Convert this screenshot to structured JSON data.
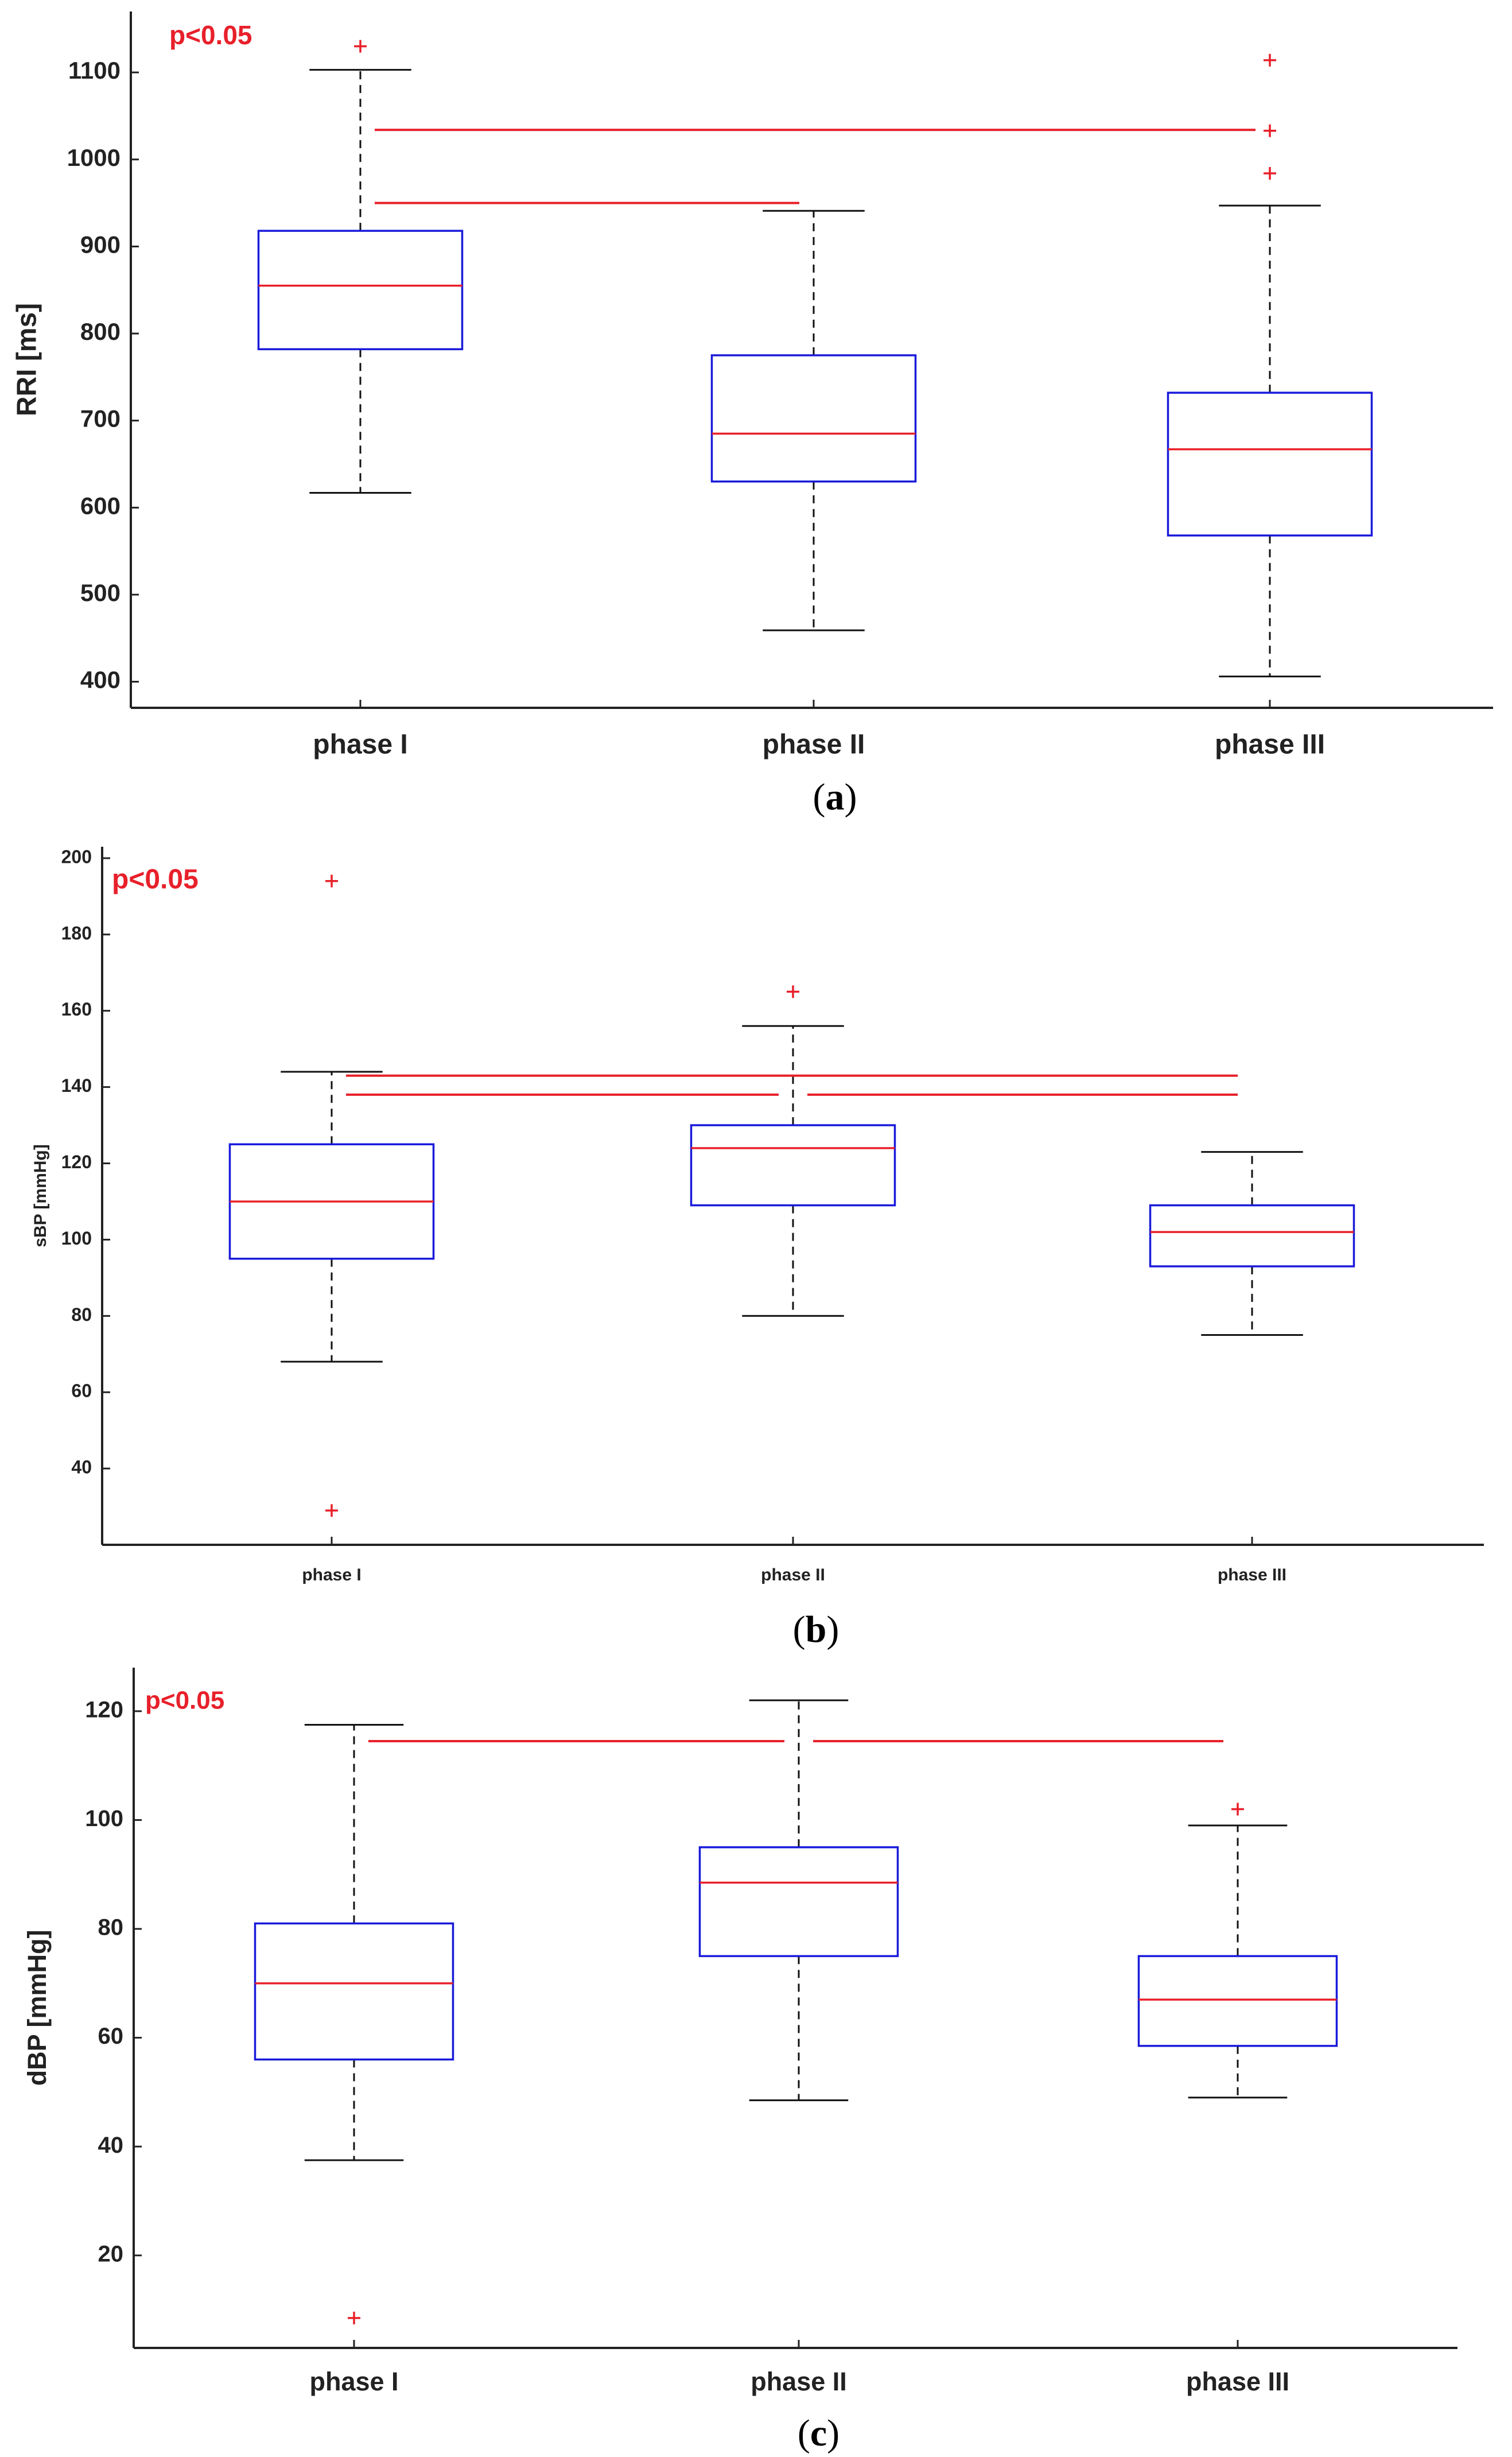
{
  "colors": {
    "box": "#1a1adb",
    "median": "#e8202a",
    "outlier": "#e8202a",
    "whisker": "#111111",
    "significance": "#e8202a",
    "axis": "#222222"
  },
  "chart_data": [
    {
      "panel": "a",
      "type": "box",
      "caption_label": "a",
      "ylabel": "RRI [ms]",
      "significance_text": "p<0.05",
      "ylim": [
        370,
        1170
      ],
      "yticks": [
        400,
        500,
        600,
        700,
        800,
        900,
        1000,
        1100
      ],
      "categories": [
        "phase I",
        "phase II",
        "phase III"
      ],
      "boxes": [
        {
          "whisker_low": 617,
          "q1": 782,
          "median": 855,
          "q3": 918,
          "whisker_high": 1103,
          "outliers": [
            1130
          ]
        },
        {
          "whisker_low": 459,
          "q1": 630,
          "median": 685,
          "q3": 775,
          "whisker_high": 941,
          "outliers": []
        },
        {
          "whisker_low": 406,
          "q1": 568,
          "median": 667,
          "q3": 732,
          "whisker_high": 947,
          "outliers": [
            984,
            1033,
            1114
          ]
        }
      ],
      "significance_lines": [
        {
          "from": 0,
          "to": 2,
          "y": 1034
        },
        {
          "from": 0,
          "to": 1,
          "y": 950
        }
      ]
    },
    {
      "panel": "b",
      "type": "box",
      "caption_label": "b",
      "ylabel": "sBP [mmHg]",
      "significance_text": "p<0.05",
      "ylim": [
        20,
        203
      ],
      "yticks": [
        40,
        60,
        80,
        100,
        120,
        140,
        160,
        180,
        200
      ],
      "categories": [
        "phase I",
        "phase II",
        "phase III"
      ],
      "boxes": [
        {
          "whisker_low": 68,
          "q1": 95,
          "median": 110,
          "q3": 125,
          "whisker_high": 144,
          "outliers": [
            194,
            29
          ]
        },
        {
          "whisker_low": 80,
          "q1": 109,
          "median": 124,
          "q3": 130,
          "whisker_high": 156,
          "outliers": [
            165
          ]
        },
        {
          "whisker_low": 75,
          "q1": 93,
          "median": 102,
          "q3": 109,
          "whisker_high": 123,
          "outliers": []
        }
      ],
      "significance_lines": [
        {
          "from": 0,
          "to": 2,
          "y": 143
        },
        {
          "from": 0,
          "to": 1,
          "y": 138
        },
        {
          "from": 1,
          "to": 2,
          "y": 138
        }
      ]
    },
    {
      "panel": "c",
      "type": "box",
      "caption_label": "c",
      "ylabel": "dBP [mmHg]",
      "significance_text": "p<0.05",
      "ylim": [
        3,
        128
      ],
      "yticks": [
        20,
        40,
        60,
        80,
        100,
        120
      ],
      "categories": [
        "phase I",
        "phase II",
        "phase III"
      ],
      "boxes": [
        {
          "whisker_low": 37.5,
          "q1": 56,
          "median": 70,
          "q3": 81,
          "whisker_high": 117.5,
          "outliers": [
            8.5
          ]
        },
        {
          "whisker_low": 48.5,
          "q1": 75,
          "median": 88.5,
          "q3": 95,
          "whisker_high": 122,
          "outliers": []
        },
        {
          "whisker_low": 49,
          "q1": 58.5,
          "median": 67,
          "q3": 75,
          "whisker_high": 99,
          "outliers": [
            102
          ]
        }
      ],
      "significance_lines": [
        {
          "from": 0,
          "to": 1,
          "y": 114.5
        },
        {
          "from": 1,
          "to": 2,
          "y": 114.5
        }
      ]
    }
  ]
}
